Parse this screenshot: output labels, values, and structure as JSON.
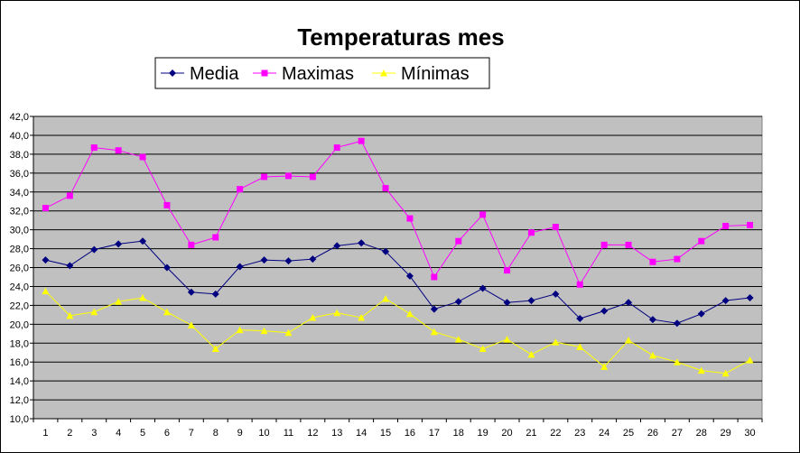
{
  "chart_data": {
    "type": "line",
    "title": "Temperaturas mes",
    "xlabel": "",
    "ylabel": "",
    "x": [
      1,
      2,
      3,
      4,
      5,
      6,
      7,
      8,
      9,
      10,
      11,
      12,
      13,
      14,
      15,
      16,
      17,
      18,
      19,
      20,
      21,
      22,
      23,
      24,
      25,
      26,
      27,
      28,
      29,
      30
    ],
    "ylim": [
      10,
      42
    ],
    "ytick_step": 2,
    "ytick_format": "decimal-comma-1",
    "grid": true,
    "legend_position": "top-center",
    "plot_background": "#C0C0C0",
    "series": [
      {
        "name": "Media",
        "color": "#000080",
        "marker": "diamond",
        "values": [
          26.8,
          26.2,
          27.9,
          28.5,
          28.8,
          26.0,
          23.4,
          23.2,
          26.1,
          26.8,
          26.7,
          26.9,
          28.3,
          28.6,
          27.7,
          25.1,
          21.6,
          22.4,
          23.8,
          22.3,
          22.5,
          23.2,
          20.6,
          21.4,
          22.3,
          20.5,
          20.1,
          21.1,
          22.5,
          22.8
        ]
      },
      {
        "name": "Maximas",
        "color": "#FF00FF",
        "marker": "square",
        "values": [
          32.3,
          33.6,
          38.7,
          38.4,
          37.7,
          32.6,
          28.4,
          29.2,
          34.3,
          35.6,
          35.7,
          35.6,
          38.7,
          39.4,
          34.4,
          31.2,
          25.0,
          28.8,
          31.6,
          25.7,
          29.7,
          30.3,
          24.2,
          28.4,
          28.4,
          26.6,
          26.9,
          28.8,
          30.4,
          30.5
        ]
      },
      {
        "name": "Mínimas",
        "color": "#FFFF00",
        "marker": "triangle",
        "values": [
          23.5,
          20.9,
          21.3,
          22.4,
          22.8,
          21.3,
          19.9,
          17.4,
          19.4,
          19.3,
          19.1,
          20.7,
          21.2,
          20.7,
          22.7,
          21.1,
          19.2,
          18.4,
          17.4,
          18.4,
          16.8,
          18.1,
          17.6,
          15.5,
          18.3,
          16.7,
          16.0,
          15.1,
          14.8,
          16.2
        ]
      }
    ]
  }
}
